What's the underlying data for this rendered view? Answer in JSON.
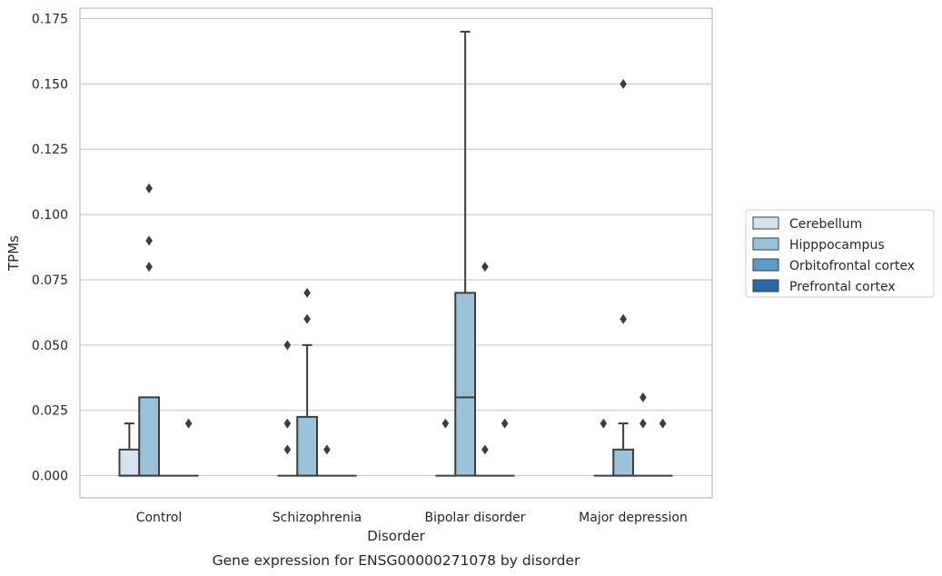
{
  "chart_data": {
    "type": "box",
    "categories": [
      "Control",
      "Schizophrenia",
      "Bipolar disorder",
      "Major depression"
    ],
    "xlabel": "Disorder",
    "ylabel": "TPMs",
    "caption": "Gene expression for ENSG00000271078 by disorder",
    "ylim": [
      -0.0085,
      0.179
    ],
    "yticks": [
      "0.000",
      "0.025",
      "0.050",
      "0.075",
      "0.100",
      "0.125",
      "0.150",
      "0.175"
    ],
    "ytick_values": [
      0,
      0.025,
      0.05,
      0.075,
      0.1,
      0.125,
      0.15,
      0.175
    ],
    "grid": "horizontal",
    "legend_position": "right",
    "hue_order": [
      "Cerebellum",
      "Hipppocampus",
      "Orbitofrontal cortex",
      "Prefrontal cortex"
    ],
    "series": [
      {
        "name": "Cerebellum",
        "color": "#d4e3f1",
        "boxes": [
          {
            "q1": 0,
            "median": 0,
            "q3": 0.01,
            "whislo": 0,
            "whishi": 0.02,
            "fliers": []
          },
          {
            "q1": 0,
            "median": 0,
            "q3": 0,
            "whislo": 0,
            "whishi": 0,
            "fliers": [
              0.05,
              0.02,
              0.01
            ]
          },
          {
            "q1": 0,
            "median": 0,
            "q3": 0,
            "whislo": 0,
            "whishi": 0,
            "fliers": [
              0.02
            ]
          },
          {
            "q1": 0,
            "median": 0,
            "q3": 0,
            "whislo": 0,
            "whishi": 0,
            "fliers": [
              0.02
            ]
          }
        ]
      },
      {
        "name": "Hipppocampus",
        "color": "#9ac2db",
        "boxes": [
          {
            "q1": 0,
            "median": 0,
            "q3": 0.03,
            "whislo": 0,
            "whishi": 0.03,
            "fliers": [
              0.11,
              0.09,
              0.08
            ]
          },
          {
            "q1": 0,
            "median": 0,
            "q3": 0.0225,
            "whislo": 0,
            "whishi": 0.05,
            "fliers": [
              0.07,
              0.06
            ]
          },
          {
            "q1": 0,
            "median": 0.03,
            "q3": 0.07,
            "whislo": 0,
            "whishi": 0.17,
            "fliers": []
          },
          {
            "q1": 0,
            "median": 0,
            "q3": 0.01,
            "whislo": 0,
            "whishi": 0.02,
            "fliers": [
              0.15,
              0.06
            ]
          }
        ]
      },
      {
        "name": "Orbitofrontal cortex",
        "color": "#5a9cc8",
        "boxes": [
          {
            "q1": 0,
            "median": 0,
            "q3": 0,
            "whislo": 0,
            "whishi": 0,
            "fliers": []
          },
          {
            "q1": 0,
            "median": 0,
            "q3": 0,
            "whislo": 0,
            "whishi": 0,
            "fliers": [
              0.01
            ]
          },
          {
            "q1": 0,
            "median": 0,
            "q3": 0,
            "whislo": 0,
            "whishi": 0,
            "fliers": [
              0.08,
              0.01
            ]
          },
          {
            "q1": 0,
            "median": 0,
            "q3": 0,
            "whislo": 0,
            "whishi": 0,
            "fliers": [
              0.03,
              0.02
            ]
          }
        ]
      },
      {
        "name": "Prefrontal cortex",
        "color": "#2a6aa8",
        "boxes": [
          {
            "q1": 0,
            "median": 0,
            "q3": 0,
            "whislo": 0,
            "whishi": 0,
            "fliers": [
              0.02
            ]
          },
          {
            "q1": 0,
            "median": 0,
            "q3": 0,
            "whislo": 0,
            "whishi": 0,
            "fliers": []
          },
          {
            "q1": 0,
            "median": 0,
            "q3": 0,
            "whislo": 0,
            "whishi": 0,
            "fliers": [
              0.02
            ]
          },
          {
            "q1": 0,
            "median": 0,
            "q3": 0,
            "whislo": 0,
            "whishi": 0,
            "fliers": [
              0.02
            ]
          }
        ]
      }
    ]
  }
}
